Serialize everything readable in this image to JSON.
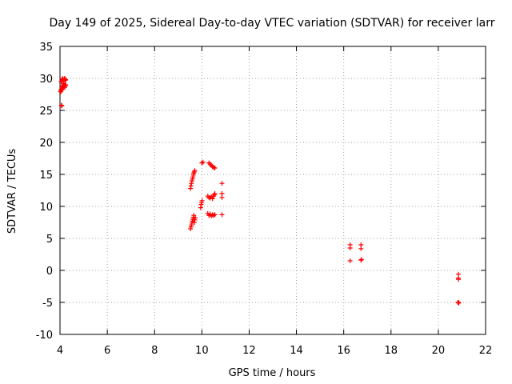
{
  "chart_data": {
    "type": "scatter",
    "title": "Day 149 of 2025, Sidereal Day-to-day VTEC variation (SDTVAR) for receiver larr",
    "xlabel": "GPS time / hours",
    "ylabel": "SDTVAR / TECUs",
    "xlim": [
      4,
      22
    ],
    "ylim": [
      -10,
      35
    ],
    "xticks": [
      4,
      6,
      8,
      10,
      12,
      14,
      16,
      18,
      20,
      22
    ],
    "yticks": [
      -10,
      -5,
      0,
      5,
      10,
      15,
      20,
      25,
      30,
      35
    ],
    "grid": true,
    "marker": "plus",
    "color": "#ff0000",
    "series": [
      {
        "values": [
          [
            4.02,
            28.0
          ],
          [
            4.04,
            27.9
          ],
          [
            4.05,
            28.3
          ],
          [
            4.07,
            28.2
          ],
          [
            4.08,
            28.6
          ],
          [
            4.1,
            28.4
          ],
          [
            4.12,
            28.8
          ],
          [
            4.14,
            29.0
          ],
          [
            4.15,
            28.7
          ],
          [
            4.17,
            29.2
          ],
          [
            4.18,
            28.9
          ],
          [
            4.2,
            28.6
          ],
          [
            4.22,
            28.8
          ],
          [
            4.24,
            29.0
          ],
          [
            4.05,
            29.5
          ],
          [
            4.08,
            29.7
          ],
          [
            4.1,
            30.0
          ],
          [
            4.12,
            29.8
          ],
          [
            4.15,
            29.6
          ],
          [
            4.18,
            29.9
          ],
          [
            4.2,
            30.0
          ],
          [
            4.22,
            29.7
          ],
          [
            4.24,
            29.8
          ],
          [
            4.06,
            25.8
          ],
          [
            4.08,
            25.7
          ],
          [
            9.52,
            6.5
          ],
          [
            9.54,
            6.8
          ],
          [
            9.56,
            7.1
          ],
          [
            9.58,
            7.4
          ],
          [
            9.6,
            7.7
          ],
          [
            9.62,
            8.0
          ],
          [
            9.64,
            8.3
          ],
          [
            9.66,
            8.6
          ],
          [
            9.68,
            7.5
          ],
          [
            9.7,
            7.9
          ],
          [
            9.72,
            8.2
          ],
          [
            9.52,
            12.8
          ],
          [
            9.54,
            13.2
          ],
          [
            9.56,
            13.6
          ],
          [
            9.58,
            14.0
          ],
          [
            9.6,
            14.3
          ],
          [
            9.62,
            14.6
          ],
          [
            9.64,
            14.9
          ],
          [
            9.66,
            15.2
          ],
          [
            9.68,
            15.4
          ],
          [
            9.7,
            15.6
          ],
          [
            9.95,
            9.8
          ],
          [
            9.97,
            10.3
          ],
          [
            9.99,
            10.6
          ],
          [
            10.01,
            10.9
          ],
          [
            10.0,
            16.8
          ],
          [
            10.05,
            16.9
          ],
          [
            10.3,
            16.8
          ],
          [
            10.35,
            16.6
          ],
          [
            10.4,
            16.4
          ],
          [
            10.45,
            16.2
          ],
          [
            10.5,
            16.1
          ],
          [
            10.55,
            16.0
          ],
          [
            10.25,
            11.6
          ],
          [
            10.3,
            11.4
          ],
          [
            10.35,
            11.3
          ],
          [
            10.4,
            11.5
          ],
          [
            10.45,
            11.2
          ],
          [
            10.5,
            11.6
          ],
          [
            10.55,
            12.0
          ],
          [
            10.52,
            11.8
          ],
          [
            10.25,
            8.9
          ],
          [
            10.3,
            8.6
          ],
          [
            10.35,
            8.8
          ],
          [
            10.4,
            8.5
          ],
          [
            10.45,
            8.7
          ],
          [
            10.5,
            8.6
          ],
          [
            10.55,
            8.7
          ],
          [
            10.85,
            13.6
          ],
          [
            10.85,
            12.0
          ],
          [
            10.85,
            11.4
          ],
          [
            10.85,
            8.7
          ],
          [
            16.27,
            4.0
          ],
          [
            16.27,
            3.5
          ],
          [
            16.27,
            1.5
          ],
          [
            16.73,
            4.0
          ],
          [
            16.73,
            3.4
          ],
          [
            16.73,
            1.6
          ],
          [
            16.75,
            1.7
          ],
          [
            20.85,
            -0.6
          ],
          [
            20.85,
            -1.2
          ],
          [
            20.85,
            -1.4
          ],
          [
            20.85,
            -5.0
          ],
          [
            20.87,
            -5.1
          ],
          [
            20.83,
            -5.0
          ]
        ]
      }
    ]
  }
}
